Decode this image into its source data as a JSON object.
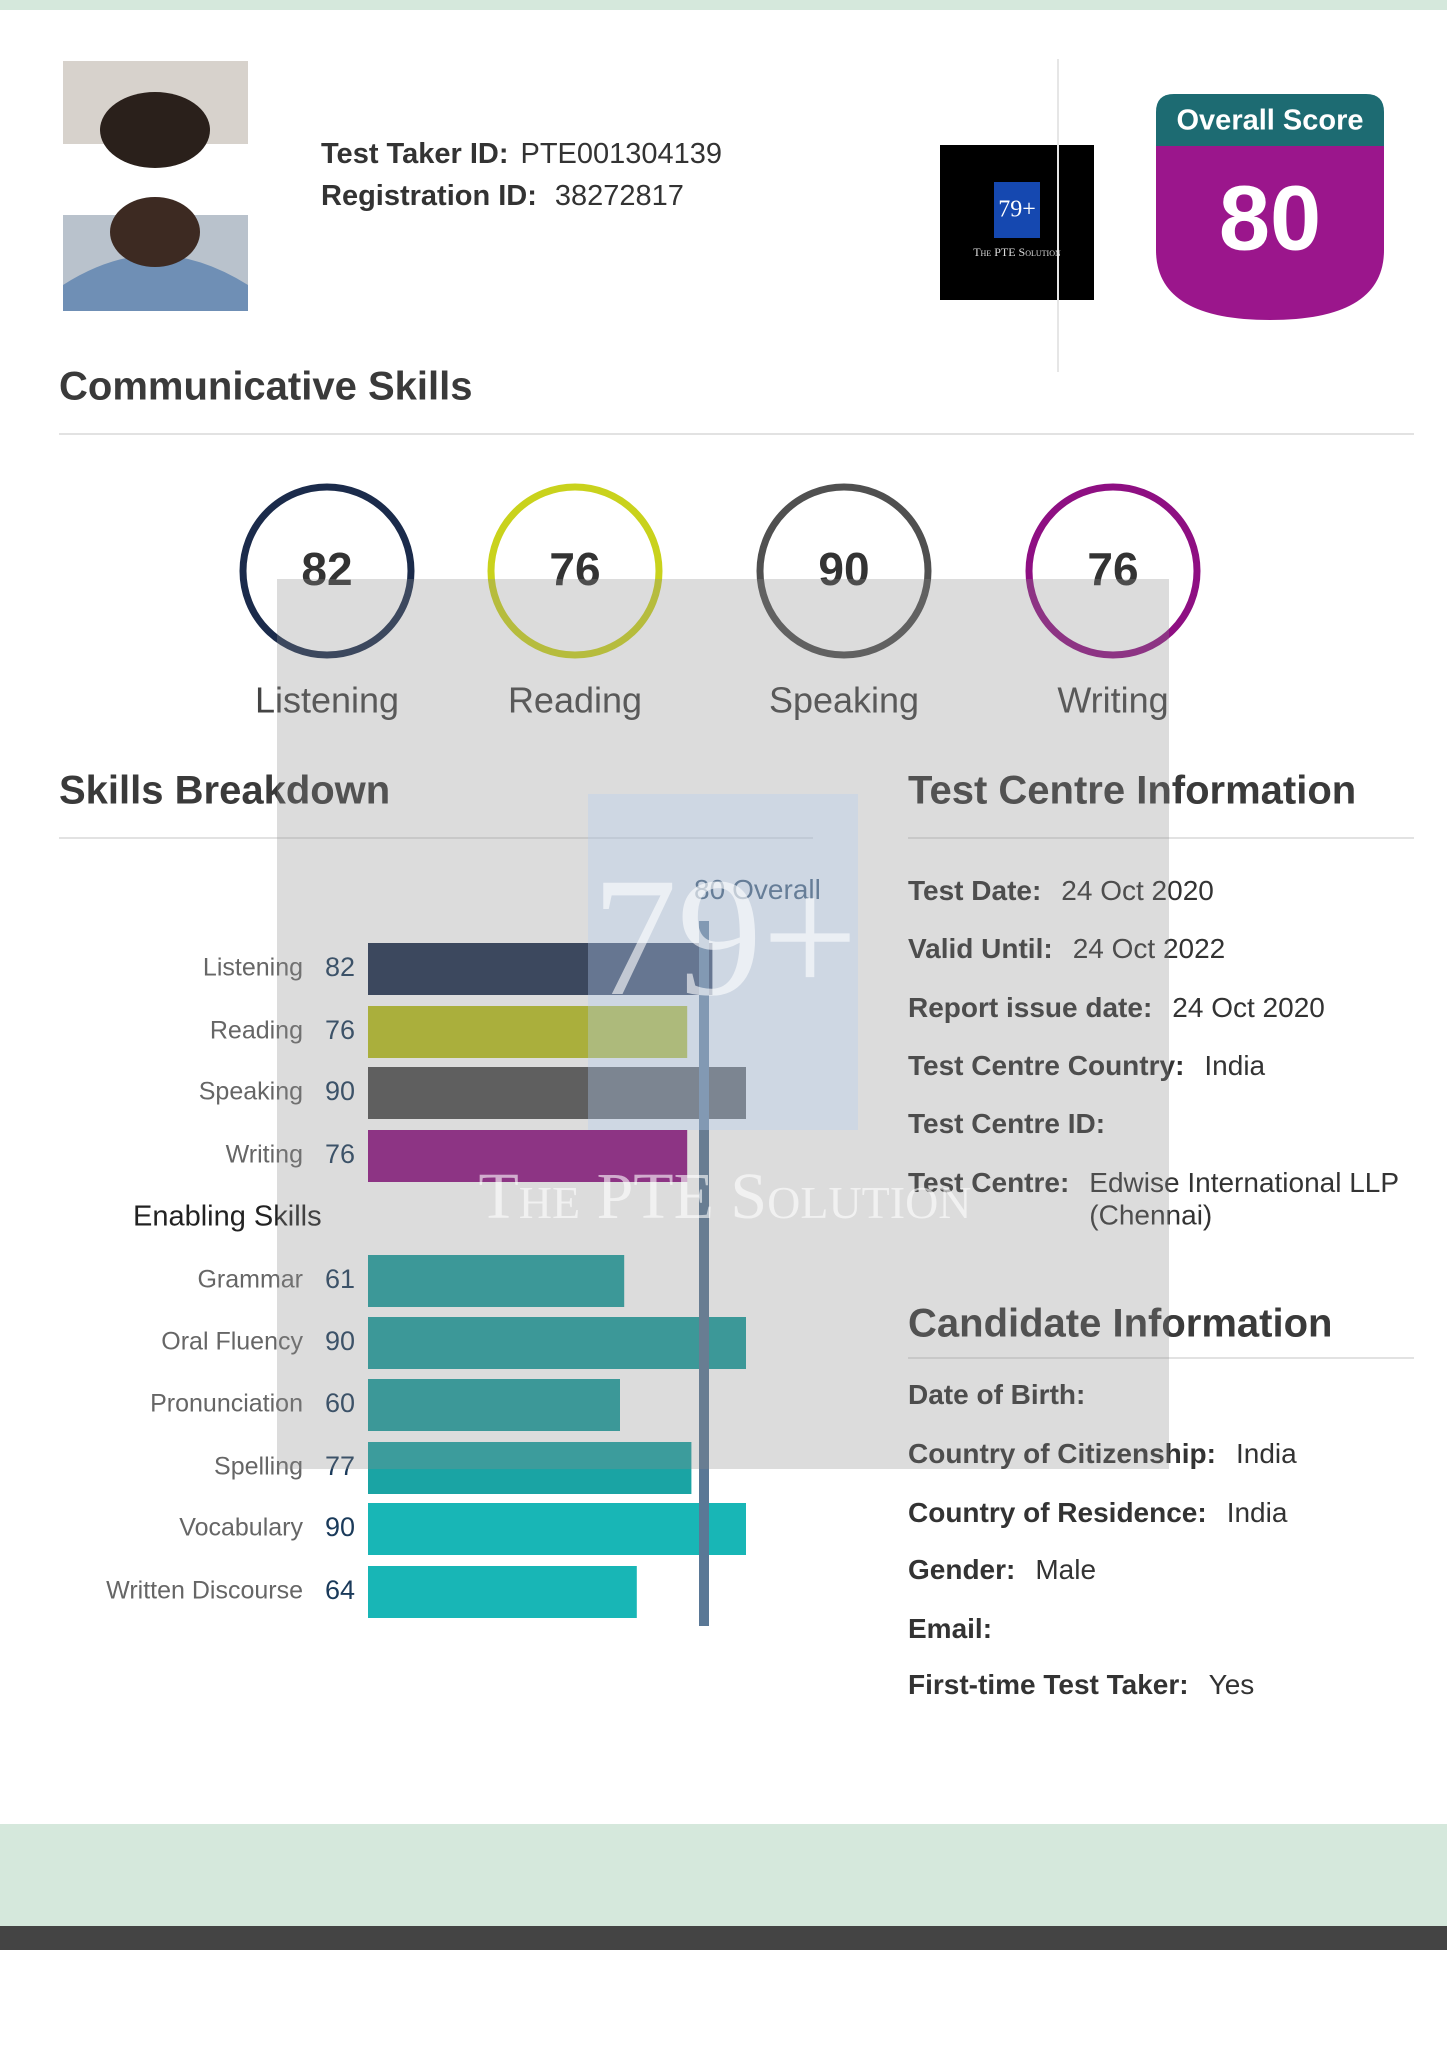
{
  "header": {
    "test_taker_label": "Test Taker ID:",
    "test_taker_id": "PTE001304139",
    "registration_label": "Registration ID:",
    "registration_id": "38272817"
  },
  "watermark": {
    "mark": "79+",
    "brand": "The PTE Solution"
  },
  "overall": {
    "label": "Overall Score",
    "score": 80
  },
  "communicative_skills": {
    "title": "Communicative Skills",
    "skills": [
      {
        "name": "Listening",
        "score": 82,
        "color": "#1b2b4b"
      },
      {
        "name": "Reading",
        "score": 76,
        "color": "#c9d21c"
      },
      {
        "name": "Speaking",
        "score": 90,
        "color": "#505050"
      },
      {
        "name": "Writing",
        "score": 76,
        "color": "#8e0f82"
      }
    ]
  },
  "skills_breakdown_title": "Skills Breakdown",
  "chart_data": {
    "type": "bar",
    "orientation": "horizontal",
    "categories": [
      "Listening",
      "Reading",
      "Speaking",
      "Writing",
      "Grammar",
      "Oral Fluency",
      "Pronunciation",
      "Spelling",
      "Vocabulary",
      "Written Discourse"
    ],
    "values": [
      82,
      76,
      90,
      76,
      61,
      90,
      60,
      77,
      90,
      64
    ],
    "colors": [
      "#1b2b4b",
      "#b8bf1a",
      "#4c4c4c",
      "#8e0f82",
      "#1a9e9e",
      "#1a9e9e",
      "#1a9e9e",
      "#1aa4a4",
      "#18b6b6",
      "#18b6b6"
    ],
    "group_label": "Enabling Skills",
    "xlim": [
      0,
      90
    ],
    "reference": {
      "value": 80,
      "label": "Overall",
      "color": "#5a7896"
    }
  },
  "test_centre": {
    "title": "Test Centre Information",
    "rows": [
      {
        "label": "Test Date:",
        "value": "24 Oct 2020"
      },
      {
        "label": "Valid Until:",
        "value": "24 Oct 2022"
      },
      {
        "label": "Report issue date:",
        "value": "24 Oct 2020"
      },
      {
        "label": "Test Centre Country:",
        "value": "India"
      },
      {
        "label": "Test Centre ID:"
      },
      {
        "label": "Test Centre:",
        "value": "Edwise International LLP",
        "value_line2": "(Chennai)"
      }
    ]
  },
  "candidate": {
    "title": "Candidate Information",
    "rows": [
      {
        "label": "Date of Birth:"
      },
      {
        "label": "Country of Citizenship:",
        "value": "India"
      },
      {
        "label": "Country of Residence:",
        "value": "India"
      },
      {
        "label": "Gender:",
        "value": "Male"
      },
      {
        "label": "Email:"
      },
      {
        "label": "First-time Test Taker:",
        "value": "Yes"
      }
    ]
  }
}
